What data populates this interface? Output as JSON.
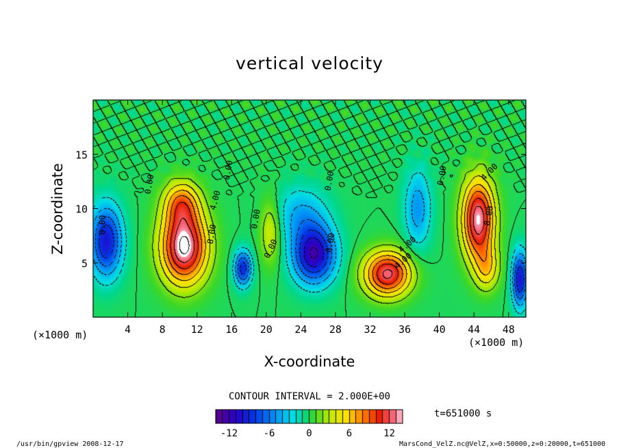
{
  "chart_data": {
    "type": "heatmap",
    "title": "vertical velocity",
    "xlabel": "X-coordinate",
    "ylabel": "Z-coordinate",
    "x_unit_left": "(×1000 m)",
    "x_unit_right": "(×1000 m)",
    "xlim": [
      0,
      50
    ],
    "ylim": [
      0,
      20
    ],
    "x_ticks": [
      "4",
      "8",
      "12",
      "16",
      "20",
      "24",
      "28",
      "32",
      "36",
      "40",
      "44",
      "48"
    ],
    "x_tick_values": [
      4,
      8,
      12,
      16,
      20,
      24,
      28,
      32,
      36,
      40,
      44,
      48
    ],
    "y_ticks": [
      "5",
      "10",
      "15"
    ],
    "y_tick_values": [
      5,
      10,
      15
    ],
    "contour_interval_text": "CONTOUR INTERVAL = 2.000E+00",
    "contour_labels": [
      "0.00",
      "0.00",
      "0.00",
      "0.00",
      "0.00",
      "0.00",
      "4.00",
      "4.00",
      "4.00",
      "8.00",
      "8.00",
      "0.00",
      "4.00",
      "0.00"
    ],
    "time_label": "t=651000 s",
    "colorbar": {
      "min": -14,
      "max": 14,
      "ticks": [
        "-12",
        "-6",
        "0",
        "6",
        "12"
      ],
      "tick_values": [
        -12,
        -6,
        0,
        6,
        12
      ]
    },
    "features": [
      {
        "x": 10.5,
        "z": 6.5,
        "w": 14.5,
        "sx": 2.6,
        "sz": 3.3
      },
      {
        "x": 10.2,
        "z": 10.5,
        "w": 7,
        "sx": 2.0,
        "sz": 2.0
      },
      {
        "x": 34.0,
        "z": 4.0,
        "w": 12.5,
        "sx": 2.6,
        "sz": 2.0
      },
      {
        "x": 44.5,
        "z": 9.0,
        "w": 13.5,
        "sx": 1.8,
        "sz": 3.6
      },
      {
        "x": 45.5,
        "z": 4.5,
        "w": 5,
        "sx": 1.4,
        "sz": 2.0
      },
      {
        "x": 20.5,
        "z": 8.0,
        "w": 4,
        "sx": 1.2,
        "sz": 3.0
      },
      {
        "x": 25.5,
        "z": 5.8,
        "w": -12,
        "sx": 2.4,
        "sz": 2.6
      },
      {
        "x": 1.5,
        "z": 7.0,
        "w": -10,
        "sx": 1.8,
        "sz": 3.2
      },
      {
        "x": 17.3,
        "z": 4.5,
        "w": -9,
        "sx": 1.0,
        "sz": 1.6
      },
      {
        "x": 49.3,
        "z": 3.5,
        "w": -10,
        "sx": 0.9,
        "sz": 2.5
      },
      {
        "x": 37.5,
        "z": 10.0,
        "w": -5,
        "sx": 1.5,
        "sz": 3.5
      },
      {
        "x": 24.0,
        "z": 9.5,
        "w": -4,
        "sx": 3.0,
        "sz": 2.5
      }
    ]
  },
  "footer": {
    "left": "/usr/bin/gpview   2008-12-17",
    "right": "MarsCond_VelZ.nc@VelZ,x=0:50000,z=0:20000,t=651000"
  }
}
